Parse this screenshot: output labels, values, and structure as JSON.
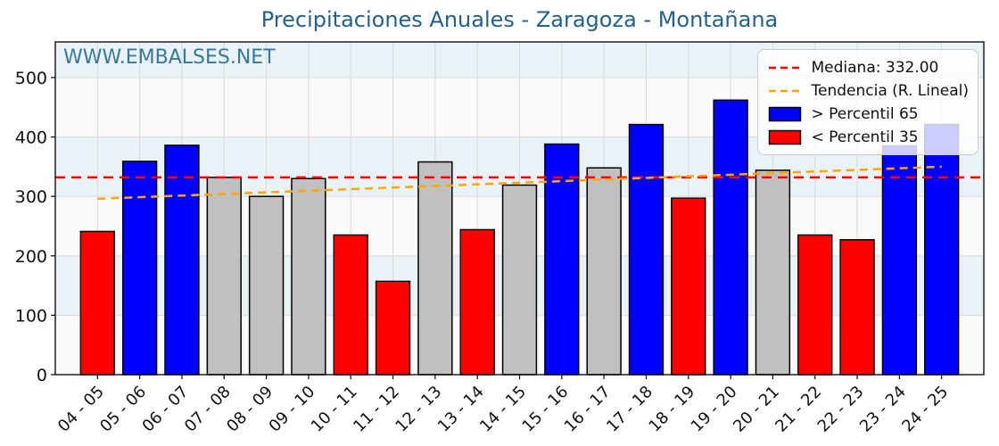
{
  "title": "Precipitaciones Anuales - Zaragoza - Montañana",
  "watermark": "WWW.EMBALSES.NET",
  "legend": {
    "median_label": "Mediana: 332.00",
    "trend_label": "Tendencia (R. Lineal)",
    "p65_label": "> Percentil 65",
    "p35_label": "< Percentil 35"
  },
  "colors": {
    "above_p65": "#0000ff",
    "below_p35": "#ff0000",
    "between_percentiles": "#c0c0c0",
    "median_line": "#ff0000",
    "trend_line": "#ffa500",
    "title_text": "#24618a",
    "watermark_text": "#38789d",
    "band_blue": "#e8f2f7",
    "band_white": "#fafafa",
    "grid": "#d9d9d9"
  },
  "chart_data": {
    "type": "bar",
    "title": "Precipitaciones Anuales - Zaragoza - Montañana",
    "xlabel": "",
    "ylabel": "",
    "categories": [
      "04 - 05",
      "05 - 06",
      "06 - 07",
      "07 - 08",
      "08 - 09",
      "09 - 10",
      "10 - 11",
      "11 - 12",
      "12 - 13",
      "13 - 14",
      "14 - 15",
      "15 - 16",
      "16 - 17",
      "17 - 18",
      "18 - 19",
      "19 - 20",
      "20 - 21",
      "21 - 22",
      "22 - 23",
      "23 - 24",
      "24 - 25"
    ],
    "values": [
      241,
      359,
      386,
      332,
      300,
      330,
      235,
      157,
      358,
      244,
      319,
      388,
      348,
      421,
      297,
      462,
      344,
      235,
      227,
      385,
      421
    ],
    "bar_classes": [
      "below_p35",
      "above_p65",
      "above_p65",
      "between_percentiles",
      "between_percentiles",
      "between_percentiles",
      "below_p35",
      "below_p35",
      "between_percentiles",
      "below_p35",
      "between_percentiles",
      "above_p65",
      "between_percentiles",
      "above_p65",
      "below_p35",
      "above_p65",
      "between_percentiles",
      "below_p35",
      "below_p35",
      "above_p65",
      "above_p65"
    ],
    "median": 332.0,
    "trend_linear": {
      "start_value": 296,
      "end_value": 350
    },
    "ylim": [
      0,
      560
    ],
    "yticks": [
      0,
      100,
      200,
      300,
      400,
      500
    ],
    "grid": true,
    "legend_position": "upper right"
  }
}
